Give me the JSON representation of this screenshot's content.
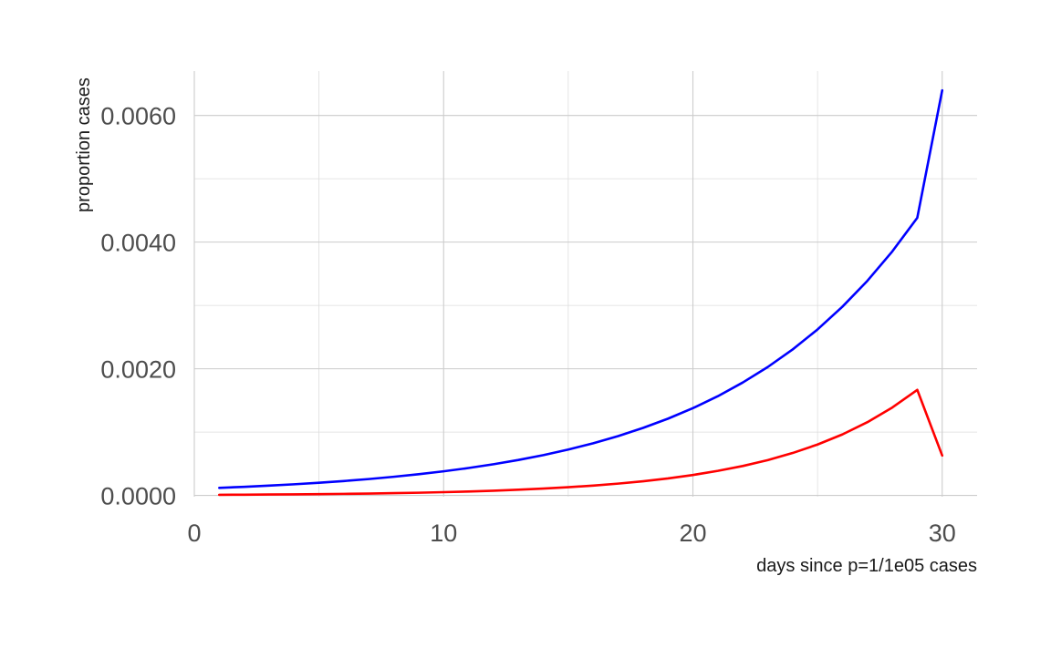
{
  "chart_data": {
    "type": "line",
    "title": "",
    "xlabel": "days since p=1/1e05 cases",
    "ylabel": "proportion cases",
    "xlim": [
      0,
      31.4
    ],
    "ylim": [
      -2e-05,
      0.0067
    ],
    "x_ticks": [
      0,
      10,
      20,
      30
    ],
    "x_tick_labels": [
      "0",
      "10",
      "20",
      "30"
    ],
    "y_ticks": [
      0,
      0.002,
      0.004,
      0.006
    ],
    "y_tick_labels": [
      "0.0000",
      "0.0020",
      "0.0040",
      "0.0060"
    ],
    "grid": true,
    "legend": "none",
    "series": [
      {
        "color": "#0000ff",
        "x": [
          1,
          2,
          3,
          4,
          5,
          6,
          7,
          8,
          9,
          10,
          11,
          12,
          13,
          14,
          15,
          16,
          17,
          18,
          19,
          20,
          21,
          22,
          23,
          24,
          25,
          26,
          27,
          28,
          29,
          30
        ],
        "y": [
          0.00012,
          0.000136,
          0.000155,
          0.000176,
          0.0002,
          0.000228,
          0.000259,
          0.000295,
          0.000335,
          0.000381,
          0.000433,
          0.000493,
          0.00056,
          0.000637,
          0.000725,
          0.000824,
          0.000937,
          0.001066,
          0.001212,
          0.001378,
          0.001567,
          0.001783,
          0.002027,
          0.002305,
          0.002621,
          0.002981,
          0.003389,
          0.003854,
          0.004383,
          0.006396
        ]
      },
      {
        "color": "#ff0000",
        "x": [
          1,
          2,
          3,
          4,
          5,
          6,
          7,
          8,
          9,
          10,
          11,
          12,
          13,
          14,
          15,
          16,
          17,
          18,
          19,
          20,
          21,
          22,
          23,
          24,
          25,
          26,
          27,
          28,
          29,
          30
        ],
        "y": [
          1e-05,
          1.2e-05,
          1.5e-05,
          1.7e-05,
          2.1e-05,
          2.5e-05,
          3e-05,
          3.6e-05,
          4.3e-05,
          5.2e-05,
          6.2e-05,
          7.5e-05,
          9e-05,
          0.000108,
          0.00013,
          0.000156,
          0.000187,
          0.000224,
          0.000269,
          0.000323,
          0.000388,
          0.000465,
          0.000558,
          0.00067,
          0.000804,
          0.000964,
          0.001157,
          0.001389,
          0.001667,
          0.00063
        ]
      }
    ]
  }
}
